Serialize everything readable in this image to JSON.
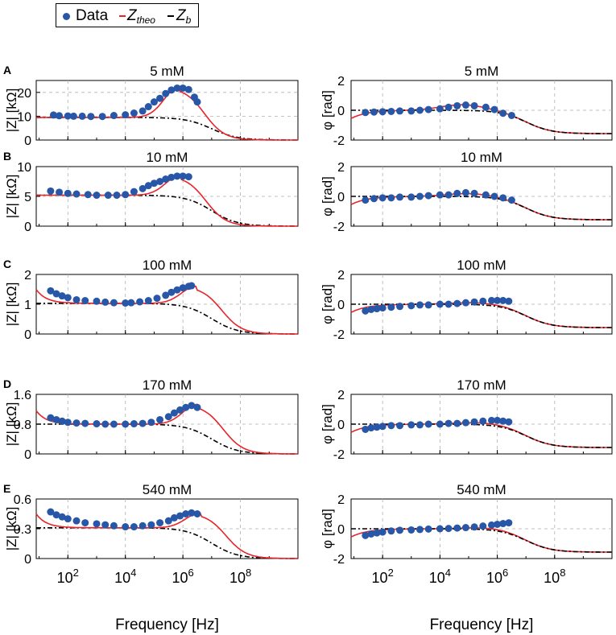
{
  "colors": {
    "data": "#2957a8",
    "theo": "#e8242a",
    "bulk": "#000000",
    "grid": "#b0b0b0"
  },
  "legend": {
    "data_label": "Data",
    "theo_prefix": "Z",
    "theo_sub": "theo",
    "bulk_prefix": "Z",
    "bulk_sub": "b"
  },
  "axes": {
    "xlabel": "Frequency [Hz]",
    "x_tick_labels": [
      "10^2",
      "10^4",
      "10^6",
      "10^8"
    ],
    "x_range_log10": [
      0.9,
      10
    ],
    "magnitude_ylabel": "|Z| [kΩ]",
    "phase_ylabel": "φ [rad]",
    "phase_ylim": [
      -2,
      2
    ],
    "phase_ticks": [
      -2,
      0,
      2
    ]
  },
  "chart_data": {
    "type": "scatter",
    "description_of_x": "log10 of frequency in Hz",
    "rows": [
      {
        "panel_letter": "A",
        "concentration": "5 mM",
        "magnitude": {
          "ylim": [
            0,
            25
          ],
          "ticks": [
            0,
            10,
            20
          ],
          "peak_x": 5.9,
          "theo_peak_x": 5.85,
          "bulk": 9.5,
          "theo_peak": 22.2,
          "data": [
            [
              1.5,
              10.5
            ],
            [
              1.7,
              10.2
            ],
            [
              2.0,
              10.1
            ],
            [
              2.2,
              10.0
            ],
            [
              2.5,
              10.0
            ],
            [
              2.8,
              9.9
            ],
            [
              3.2,
              9.9
            ],
            [
              3.6,
              10.3
            ],
            [
              4.0,
              10.6
            ],
            [
              4.3,
              11.3
            ],
            [
              4.6,
              12.2
            ],
            [
              4.8,
              14.0
            ],
            [
              5.0,
              16.0
            ],
            [
              5.2,
              17.5
            ],
            [
              5.4,
              19.5
            ],
            [
              5.6,
              21.0
            ],
            [
              5.8,
              21.8
            ],
            [
              6.0,
              21.8
            ],
            [
              6.2,
              21.2
            ],
            [
              6.4,
              18.0
            ],
            [
              6.5,
              16.0
            ]
          ]
        },
        "phase": {
          "theo_peak": 0.38,
          "peak_x": 4.8,
          "data": [
            [
              1.4,
              -0.15
            ],
            [
              1.7,
              -0.12
            ],
            [
              2.0,
              -0.1
            ],
            [
              2.3,
              -0.08
            ],
            [
              2.6,
              -0.05
            ],
            [
              3.0,
              -0.05
            ],
            [
              3.3,
              0.0
            ],
            [
              3.6,
              0.05
            ],
            [
              4.0,
              0.1
            ],
            [
              4.3,
              0.2
            ],
            [
              4.6,
              0.3
            ],
            [
              4.9,
              0.35
            ],
            [
              5.2,
              0.3
            ],
            [
              5.6,
              0.2
            ],
            [
              5.9,
              0.05
            ],
            [
              6.2,
              -0.2
            ],
            [
              6.5,
              -0.35
            ]
          ]
        }
      },
      {
        "panel_letter": "B",
        "concentration": "10 mM",
        "magnitude": {
          "ylim": [
            0,
            10
          ],
          "ticks": [
            0,
            5,
            10
          ],
          "peak_x": 5.95,
          "theo_peak_x": 5.9,
          "bulk": 5.2,
          "theo_peak": 8.5,
          "data": [
            [
              1.4,
              5.9
            ],
            [
              1.7,
              5.7
            ],
            [
              2.0,
              5.5
            ],
            [
              2.3,
              5.4
            ],
            [
              2.7,
              5.3
            ],
            [
              3.0,
              5.2
            ],
            [
              3.4,
              5.2
            ],
            [
              3.7,
              5.2
            ],
            [
              4.0,
              5.3
            ],
            [
              4.3,
              5.8
            ],
            [
              4.6,
              6.3
            ],
            [
              4.8,
              6.8
            ],
            [
              5.0,
              7.2
            ],
            [
              5.2,
              7.5
            ],
            [
              5.4,
              7.9
            ],
            [
              5.6,
              8.2
            ],
            [
              5.8,
              8.4
            ],
            [
              6.0,
              8.4
            ],
            [
              6.2,
              8.3
            ]
          ]
        },
        "phase": {
          "theo_peak": 0.2,
          "peak_x": 5.0,
          "data": [
            [
              1.4,
              -0.25
            ],
            [
              1.7,
              -0.15
            ],
            [
              2.0,
              -0.1
            ],
            [
              2.3,
              -0.1
            ],
            [
              2.6,
              -0.05
            ],
            [
              3.0,
              -0.05
            ],
            [
              3.3,
              0.0
            ],
            [
              3.6,
              0.05
            ],
            [
              4.0,
              0.1
            ],
            [
              4.3,
              0.1
            ],
            [
              4.6,
              0.2
            ],
            [
              4.9,
              0.25
            ],
            [
              5.2,
              0.2
            ],
            [
              5.6,
              0.1
            ],
            [
              5.9,
              0.0
            ],
            [
              6.2,
              -0.1
            ],
            [
              6.5,
              -0.25
            ]
          ]
        }
      },
      {
        "panel_letter": "C",
        "concentration": "100 mM",
        "magnitude": {
          "ylim": [
            0,
            2
          ],
          "ticks": [
            0,
            1,
            2
          ],
          "peak_x": 6.3,
          "theo_peak_x": 6.45,
          "bulk": 1.03,
          "theo_peak": 1.6,
          "data": [
            [
              1.4,
              1.45
            ],
            [
              1.6,
              1.35
            ],
            [
              1.8,
              1.28
            ],
            [
              2.0,
              1.22
            ],
            [
              2.3,
              1.15
            ],
            [
              2.6,
              1.12
            ],
            [
              3.0,
              1.1
            ],
            [
              3.3,
              1.07
            ],
            [
              3.6,
              1.05
            ],
            [
              4.0,
              1.04
            ],
            [
              4.2,
              1.05
            ],
            [
              4.5,
              1.08
            ],
            [
              4.8,
              1.12
            ],
            [
              5.1,
              1.2
            ],
            [
              5.4,
              1.3
            ],
            [
              5.6,
              1.4
            ],
            [
              5.8,
              1.48
            ],
            [
              6.0,
              1.55
            ],
            [
              6.2,
              1.6
            ],
            [
              6.3,
              1.62
            ]
          ]
        },
        "phase": {
          "theo_peak": 0.12,
          "peak_x": 5.2,
          "data": [
            [
              1.4,
              -0.45
            ],
            [
              1.6,
              -0.35
            ],
            [
              1.8,
              -0.3
            ],
            [
              2.0,
              -0.25
            ],
            [
              2.3,
              -0.2
            ],
            [
              2.6,
              -0.15
            ],
            [
              3.0,
              -0.1
            ],
            [
              3.3,
              -0.05
            ],
            [
              3.6,
              -0.05
            ],
            [
              4.0,
              0.0
            ],
            [
              4.3,
              0.0
            ],
            [
              4.6,
              0.05
            ],
            [
              4.9,
              0.1
            ],
            [
              5.2,
              0.15
            ],
            [
              5.5,
              0.2
            ],
            [
              5.8,
              0.25
            ],
            [
              6.0,
              0.25
            ],
            [
              6.2,
              0.25
            ],
            [
              6.4,
              0.2
            ]
          ]
        }
      },
      {
        "panel_letter": "D",
        "concentration": "170 mM",
        "magnitude": {
          "ylim": [
            0,
            1.6
          ],
          "ticks": [
            0,
            0.8,
            1.6
          ],
          "peak_x": 6.35,
          "theo_peak_x": 6.5,
          "bulk": 0.8,
          "theo_peak": 1.33,
          "data": [
            [
              1.4,
              0.97
            ],
            [
              1.6,
              0.92
            ],
            [
              1.8,
              0.88
            ],
            [
              2.0,
              0.85
            ],
            [
              2.3,
              0.83
            ],
            [
              2.6,
              0.82
            ],
            [
              3.0,
              0.81
            ],
            [
              3.3,
              0.8
            ],
            [
              3.6,
              0.8
            ],
            [
              4.0,
              0.8
            ],
            [
              4.3,
              0.81
            ],
            [
              4.6,
              0.82
            ],
            [
              4.9,
              0.85
            ],
            [
              5.2,
              0.92
            ],
            [
              5.5,
              1.0
            ],
            [
              5.7,
              1.1
            ],
            [
              5.9,
              1.18
            ],
            [
              6.1,
              1.25
            ],
            [
              6.3,
              1.3
            ],
            [
              6.5,
              1.25
            ]
          ]
        },
        "phase": {
          "theo_peak": 0.12,
          "peak_x": 5.4,
          "data": [
            [
              1.4,
              -0.35
            ],
            [
              1.6,
              -0.25
            ],
            [
              1.8,
              -0.2
            ],
            [
              2.0,
              -0.15
            ],
            [
              2.3,
              -0.1
            ],
            [
              2.6,
              -0.1
            ],
            [
              3.0,
              -0.05
            ],
            [
              3.3,
              -0.05
            ],
            [
              3.6,
              0.0
            ],
            [
              4.0,
              0.0
            ],
            [
              4.3,
              0.05
            ],
            [
              4.6,
              0.05
            ],
            [
              4.9,
              0.1
            ],
            [
              5.2,
              0.15
            ],
            [
              5.5,
              0.2
            ],
            [
              5.8,
              0.25
            ],
            [
              6.0,
              0.25
            ],
            [
              6.2,
              0.2
            ],
            [
              6.4,
              0.15
            ]
          ]
        }
      },
      {
        "panel_letter": "E",
        "concentration": "540 mM",
        "magnitude": {
          "ylim": [
            0,
            0.6
          ],
          "ticks": [
            0,
            0.3,
            0.6
          ],
          "peak_x": 6.4,
          "theo_peak_x": 6.6,
          "bulk": 0.31,
          "theo_peak": 0.46,
          "data": [
            [
              1.4,
              0.47
            ],
            [
              1.6,
              0.44
            ],
            [
              1.8,
              0.42
            ],
            [
              2.0,
              0.4
            ],
            [
              2.3,
              0.38
            ],
            [
              2.6,
              0.36
            ],
            [
              3.0,
              0.35
            ],
            [
              3.3,
              0.34
            ],
            [
              3.6,
              0.33
            ],
            [
              4.0,
              0.32
            ],
            [
              4.3,
              0.32
            ],
            [
              4.6,
              0.33
            ],
            [
              4.9,
              0.34
            ],
            [
              5.2,
              0.36
            ],
            [
              5.5,
              0.38
            ],
            [
              5.7,
              0.41
            ],
            [
              5.9,
              0.43
            ],
            [
              6.1,
              0.45
            ],
            [
              6.3,
              0.46
            ],
            [
              6.5,
              0.45
            ]
          ]
        },
        "phase": {
          "theo_peak": 0.1,
          "peak_x": 5.6,
          "data": [
            [
              1.4,
              -0.45
            ],
            [
              1.6,
              -0.35
            ],
            [
              1.8,
              -0.28
            ],
            [
              2.0,
              -0.22
            ],
            [
              2.3,
              -0.15
            ],
            [
              2.6,
              -0.1
            ],
            [
              3.0,
              -0.08
            ],
            [
              3.3,
              -0.05
            ],
            [
              3.6,
              -0.02
            ],
            [
              4.0,
              0.0
            ],
            [
              4.3,
              0.02
            ],
            [
              4.6,
              0.05
            ],
            [
              4.9,
              0.08
            ],
            [
              5.2,
              0.12
            ],
            [
              5.5,
              0.18
            ],
            [
              5.8,
              0.25
            ],
            [
              6.0,
              0.3
            ],
            [
              6.2,
              0.35
            ],
            [
              6.4,
              0.4
            ]
          ]
        }
      }
    ]
  }
}
